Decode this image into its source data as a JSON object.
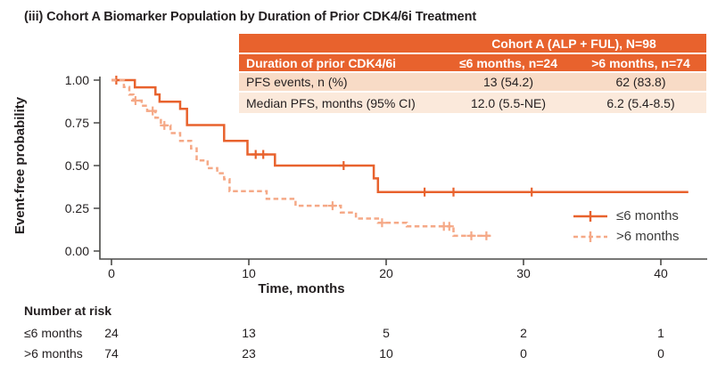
{
  "title": "(iii) Cohort A Biomarker Population by Duration of Prior CDK4/6i Treatment",
  "summary_table": {
    "merged_header": "Cohort A (ALP + FUL), N=98",
    "columns_header": {
      "label": "Duration of prior CDK4/6i",
      "group1": "≤6 months, n=24",
      "group2": ">6 months, n=74"
    },
    "rows": [
      {
        "label": "PFS events, n (%)",
        "group1": "13 (54.2)",
        "group2": "62 (83.8)"
      },
      {
        "label": "Median PFS, months (95% CI)",
        "group1": "12.0 (5.5-NE)",
        "group2": "6.2 (5.4-8.5)"
      }
    ]
  },
  "chart_data": {
    "type": "line",
    "subtype": "kaplan-meier-step",
    "title": "",
    "xlabel": "Time, months",
    "ylabel": "Event-free probability",
    "xlim": [
      0,
      42
    ],
    "ylim": [
      0,
      1.0
    ],
    "grid": false,
    "legend_position": "right-center",
    "x_ticks": [
      {
        "value": 0,
        "label": "0"
      },
      {
        "value": 10,
        "label": "10"
      },
      {
        "value": 20,
        "label": "20"
      },
      {
        "value": 30,
        "label": "30"
      },
      {
        "value": 40,
        "label": "40"
      }
    ],
    "y_ticks": [
      {
        "value": 1.0,
        "label": "1.00"
      },
      {
        "value": 0.75,
        "label": "0.75"
      },
      {
        "value": 0.5,
        "label": "0.50"
      },
      {
        "value": 0.25,
        "label": "0.25"
      },
      {
        "value": 0.0,
        "label": "0.00"
      }
    ],
    "series": [
      {
        "name": "≤6 months",
        "style": "solid",
        "color": "#E8622D",
        "steps": [
          [
            0,
            1.0
          ],
          [
            1.7,
            0.958
          ],
          [
            3.2,
            0.916
          ],
          [
            3.5,
            0.874
          ],
          [
            5.0,
            0.832
          ],
          [
            5.5,
            0.737
          ],
          [
            8.2,
            0.645
          ],
          [
            9.9,
            0.565
          ],
          [
            11.9,
            0.5
          ],
          [
            19.1,
            0.425
          ],
          [
            19.4,
            0.345
          ]
        ],
        "end": 42,
        "censors": [
          [
            0.35,
            1.0
          ],
          [
            10.5,
            0.565
          ],
          [
            11.05,
            0.565
          ],
          [
            16.9,
            0.5
          ],
          [
            22.8,
            0.345
          ],
          [
            24.9,
            0.345
          ],
          [
            30.6,
            0.345
          ]
        ]
      },
      {
        "name": ">6 months",
        "style": "dashed",
        "color": "#F5A987",
        "steps": [
          [
            0,
            1.0
          ],
          [
            0.9,
            0.96
          ],
          [
            1.3,
            0.915
          ],
          [
            1.6,
            0.88
          ],
          [
            2.2,
            0.85
          ],
          [
            2.6,
            0.82
          ],
          [
            3.2,
            0.78
          ],
          [
            3.6,
            0.735
          ],
          [
            4.3,
            0.69
          ],
          [
            5.0,
            0.645
          ],
          [
            5.8,
            0.6
          ],
          [
            6.2,
            0.53
          ],
          [
            7.0,
            0.485
          ],
          [
            7.7,
            0.455
          ],
          [
            8.2,
            0.42
          ],
          [
            8.6,
            0.35
          ],
          [
            11.3,
            0.305
          ],
          [
            13.4,
            0.265
          ],
          [
            16.7,
            0.225
          ],
          [
            17.8,
            0.19
          ],
          [
            19.4,
            0.165
          ],
          [
            21.5,
            0.145
          ],
          [
            24.9,
            0.089
          ]
        ],
        "end": 27.8,
        "censors": [
          [
            1.75,
            0.88
          ],
          [
            3.0,
            0.82
          ],
          [
            3.85,
            0.735
          ],
          [
            16.1,
            0.265
          ],
          [
            19.7,
            0.165
          ],
          [
            24.2,
            0.145
          ],
          [
            24.6,
            0.145
          ],
          [
            26.2,
            0.089
          ],
          [
            27.3,
            0.089
          ]
        ]
      }
    ]
  },
  "legend": {
    "items": [
      {
        "label": "≤6 months",
        "style": "solid"
      },
      {
        "label": ">6 months",
        "style": "dashed"
      }
    ]
  },
  "number_at_risk": {
    "heading": "Number at risk",
    "time_points": [
      0,
      10,
      20,
      30,
      40
    ],
    "rows": [
      {
        "label": "≤6 months",
        "counts": [
          "24",
          "13",
          "5",
          "2",
          "1"
        ]
      },
      {
        "label": ">6 months",
        "counts": [
          "74",
          "23",
          "10",
          "0",
          "0"
        ]
      }
    ]
  },
  "colors": {
    "orange": "#E8622D",
    "light_orange": "#F5A987",
    "table_header_bg": "#E8622D",
    "table_header_text": "#FFFFFF",
    "table_row_odd": "#F8DBC6",
    "table_row_even": "#FBE9DB",
    "text": "#231F20",
    "axis": "#4A4A48",
    "legend_text": "#3C3C3B"
  }
}
